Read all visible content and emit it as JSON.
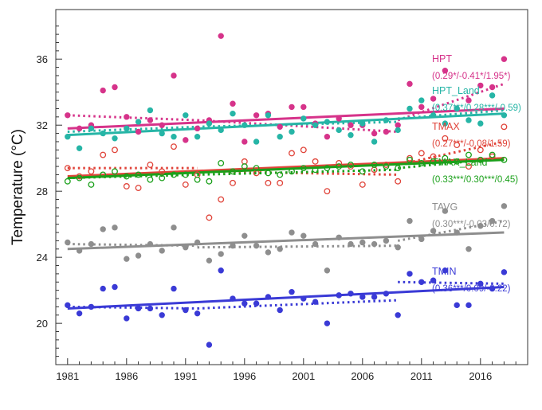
{
  "chart_data": {
    "type": "scatter",
    "ylabel": "Temperature (°C)",
    "xlim": [
      1980,
      2020
    ],
    "ylim": [
      17.5,
      39
    ],
    "x_ticks": [
      "1981",
      "1986",
      "1991",
      "1996",
      "2001",
      "2006",
      "2011",
      "2016"
    ],
    "y_ticks": [
      "20",
      "24",
      "28",
      "32",
      "36"
    ],
    "grid": false,
    "legend": "right",
    "series": [
      {
        "name": "HPT",
        "stats": "(0.29*/-0.41*/1.95*)",
        "color": "#d6338a",
        "marker": "filled",
        "x": [
          1981,
          1982,
          1983,
          1984,
          1985,
          1986,
          1987,
          1988,
          1989,
          1990,
          1991,
          1992,
          1993,
          1994,
          1995,
          1996,
          1997,
          1998,
          1999,
          2000,
          2001,
          2002,
          2003,
          2004,
          2005,
          2006,
          2007,
          2008,
          2009,
          2010,
          2011,
          2012,
          2013,
          2014,
          2015,
          2016,
          2017,
          2018
        ],
        "values": [
          32.6,
          31.8,
          32.0,
          34.1,
          34.3,
          32.5,
          31.6,
          32.3,
          32.0,
          35.0,
          31.1,
          31.8,
          32.3,
          37.4,
          33.3,
          31.0,
          32.6,
          32.7,
          31.9,
          33.1,
          33.1,
          32.1,
          31.3,
          32.4,
          32.0,
          32.0,
          31.5,
          31.6,
          32.0,
          34.5,
          33.1,
          33.6,
          35.3,
          33.0,
          33.5,
          34.4,
          34.3,
          36.0
        ],
        "trend": [
          31.8,
          33.0
        ],
        "dotted": [
          [
            1981,
            1992,
            32.6,
            32.3
          ],
          [
            1992,
            2009,
            32.3,
            31.6
          ],
          [
            2009,
            2018,
            32.3,
            34.5
          ]
        ]
      },
      {
        "name": "HPT_Land",
        "stats": "(0.37***/0.28***/-0.59)",
        "color": "#26b5a6",
        "marker": "filled",
        "x": [
          1981,
          1982,
          1983,
          1984,
          1985,
          1986,
          1987,
          1988,
          1989,
          1990,
          1991,
          1992,
          1993,
          1994,
          1995,
          1996,
          1997,
          1998,
          1999,
          2000,
          2001,
          2002,
          2003,
          2004,
          2005,
          2006,
          2007,
          2008,
          2009,
          2010,
          2011,
          2012,
          2013,
          2014,
          2015,
          2016,
          2017,
          2018
        ],
        "values": [
          31.3,
          30.6,
          31.8,
          31.5,
          31.2,
          31.8,
          32.2,
          32.9,
          31.5,
          31.3,
          32.6,
          31.3,
          32.1,
          31.7,
          32.7,
          32.0,
          31.0,
          32.6,
          31.3,
          31.6,
          32.4,
          32.0,
          32.2,
          31.7,
          31.4,
          32.1,
          31.0,
          32.3,
          31.7,
          33.0,
          33.5,
          32.6,
          32.1,
          33.0,
          32.3,
          32.1,
          33.8,
          32.6
        ],
        "trend": [
          31.4,
          32.7
        ],
        "dotted": [
          [
            1981,
            1992,
            31.6,
            31.9
          ],
          [
            1992,
            2009,
            31.9,
            32.2
          ],
          [
            2009,
            2018,
            32.4,
            32.9
          ]
        ]
      },
      {
        "name": "TMAX",
        "stats": "(0.27***/-0.08/1.59)",
        "color": "#e0443a",
        "marker": "open",
        "x": [
          1981,
          1982,
          1983,
          1984,
          1985,
          1986,
          1987,
          1988,
          1989,
          1990,
          1991,
          1992,
          1993,
          1994,
          1995,
          1996,
          1997,
          1998,
          1999,
          2000,
          2001,
          2002,
          2003,
          2004,
          2005,
          2006,
          2007,
          2008,
          2009,
          2010,
          2011,
          2012,
          2013,
          2014,
          2015,
          2016,
          2017,
          2018
        ],
        "values": [
          29.4,
          28.9,
          29.2,
          30.2,
          30.5,
          28.3,
          28.2,
          29.6,
          29.2,
          30.7,
          28.4,
          29.0,
          26.4,
          27.5,
          28.5,
          29.8,
          29.1,
          28.5,
          28.5,
          30.3,
          30.5,
          29.8,
          28.0,
          29.7,
          29.5,
          28.4,
          29.3,
          29.6,
          28.6,
          30.0,
          30.3,
          30.1,
          31.2,
          30.8,
          29.5,
          30.5,
          30.1,
          31.9
        ],
        "trend": [
          28.9,
          30.0
        ],
        "dotted": [
          [
            1981,
            1992,
            29.4,
            29.4
          ],
          [
            1992,
            2009,
            29.2,
            29.0
          ],
          [
            2009,
            2018,
            29.6,
            31.0
          ]
        ]
      },
      {
        "name": "TMAX_Land",
        "stats": "(0.33***/0.30***/0.45)",
        "color": "#1aa01a",
        "marker": "open",
        "x": [
          1981,
          1982,
          1983,
          1984,
          1985,
          1986,
          1987,
          1988,
          1989,
          1990,
          1991,
          1992,
          1993,
          1994,
          1995,
          1996,
          1997,
          1998,
          1999,
          2000,
          2001,
          2002,
          2003,
          2004,
          2005,
          2006,
          2007,
          2008,
          2009,
          2010,
          2011,
          2012,
          2013,
          2014,
          2015,
          2016,
          2017,
          2018
        ],
        "values": [
          28.6,
          28.8,
          28.4,
          29.0,
          29.2,
          28.9,
          29.0,
          28.7,
          28.8,
          29.0,
          29.0,
          28.7,
          28.6,
          29.7,
          29.2,
          29.5,
          29.4,
          29.1,
          29.0,
          29.2,
          29.4,
          29.3,
          29.4,
          29.5,
          29.6,
          29.2,
          29.6,
          29.5,
          29.4,
          29.9,
          29.7,
          29.8,
          30.0,
          29.8,
          30.2,
          29.9,
          30.2,
          29.9
        ],
        "trend": [
          28.8,
          29.9
        ],
        "dotted": [
          [
            1981,
            1992,
            28.8,
            29.0
          ],
          [
            1992,
            2009,
            29.0,
            29.3
          ],
          [
            2009,
            2018,
            29.4,
            30.0
          ]
        ]
      },
      {
        "name": "TAVG",
        "stats": "(0.30***/-0.03/0.72)",
        "color": "#8e8e8e",
        "marker": "filled",
        "x": [
          1981,
          1982,
          1983,
          1984,
          1985,
          1986,
          1987,
          1988,
          1989,
          1990,
          1991,
          1992,
          1993,
          1994,
          1995,
          1996,
          1997,
          1998,
          1999,
          2000,
          2001,
          2002,
          2003,
          2004,
          2005,
          2006,
          2007,
          2008,
          2009,
          2010,
          2011,
          2012,
          2013,
          2014,
          2015,
          2016,
          2017,
          2018
        ],
        "values": [
          24.9,
          24.4,
          24.8,
          25.7,
          25.8,
          23.9,
          24.1,
          24.8,
          24.4,
          25.8,
          24.6,
          24.9,
          23.8,
          24.2,
          24.7,
          25.3,
          24.7,
          24.3,
          24.5,
          25.5,
          25.3,
          24.8,
          23.2,
          25.2,
          24.8,
          24.9,
          24.8,
          25.0,
          24.6,
          26.2,
          25.1,
          25.6,
          26.8,
          25.5,
          24.5,
          25.9,
          26.2,
          27.1
        ],
        "trend": [
          24.5,
          25.5
        ],
        "dotted": [
          [
            1981,
            1992,
            24.8,
            24.7
          ],
          [
            1992,
            2009,
            24.6,
            24.7
          ],
          [
            2009,
            2018,
            25.0,
            26.2
          ]
        ]
      },
      {
        "name": "TMIN",
        "stats": "(0.36***/0.09/-0.22)",
        "color": "#3a3ad6",
        "marker": "filled",
        "x": [
          1981,
          1982,
          1983,
          1984,
          1985,
          1986,
          1987,
          1988,
          1989,
          1990,
          1991,
          1992,
          1993,
          1994,
          1995,
          1996,
          1997,
          1998,
          1999,
          2000,
          2001,
          2002,
          2003,
          2004,
          2005,
          2006,
          2007,
          2008,
          2009,
          2010,
          2011,
          2012,
          2013,
          2014,
          2015,
          2016,
          2017,
          2018
        ],
        "values": [
          21.1,
          20.6,
          21.0,
          22.1,
          22.2,
          20.3,
          20.9,
          20.9,
          20.5,
          22.1,
          20.8,
          20.6,
          18.7,
          23.2,
          21.5,
          21.2,
          21.2,
          21.6,
          20.8,
          21.9,
          21.5,
          21.3,
          20.0,
          21.7,
          21.8,
          21.6,
          21.6,
          21.8,
          20.5,
          23.0,
          22.5,
          22.6,
          23.2,
          21.1,
          21.1,
          22.4,
          22.1,
          23.1
        ],
        "trend": [
          20.9,
          22.2
        ],
        "dotted": [
          [
            1981,
            1992,
            21.0,
            20.9
          ],
          [
            1992,
            2009,
            20.9,
            21.4
          ],
          [
            2009,
            2018,
            22.5,
            22.4
          ]
        ]
      }
    ]
  }
}
